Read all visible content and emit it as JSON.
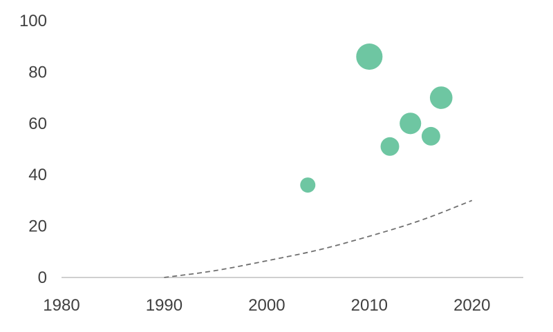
{
  "chart_data": {
    "type": "scatter",
    "title": "",
    "xlabel": "",
    "ylabel": "",
    "xlim": [
      1980,
      2025
    ],
    "ylim": [
      0,
      100
    ],
    "x_ticks": [
      1980,
      1990,
      2000,
      2010,
      2020
    ],
    "y_ticks": [
      0,
      20,
      40,
      60,
      80,
      100
    ],
    "x_tick_labels": [
      "1980",
      "1990",
      "2000",
      "2010",
      "2020"
    ],
    "y_tick_labels": [
      "0",
      "20",
      "40",
      "60",
      "80",
      "100"
    ],
    "grid": false,
    "legend": "none",
    "points": [
      {
        "x": 2004,
        "y": 36,
        "size": 1
      },
      {
        "x": 2010,
        "y": 86,
        "size": 3
      },
      {
        "x": 2012,
        "y": 51,
        "size": 1.5
      },
      {
        "x": 2014,
        "y": 60,
        "size": 2
      },
      {
        "x": 2016,
        "y": 55,
        "size": 1.5
      },
      {
        "x": 2017,
        "y": 70,
        "size": 2.2
      }
    ],
    "trend_line": {
      "style": "dashed",
      "x": [
        1990,
        1995,
        2000,
        2005,
        2010,
        2015,
        2020
      ],
      "y": [
        0,
        2.5,
        6.5,
        10.5,
        16,
        22,
        30
      ]
    },
    "colors": {
      "points": "#6ec6a2",
      "trend": "#6f6f6f",
      "axis": "#bfbfbf"
    }
  }
}
